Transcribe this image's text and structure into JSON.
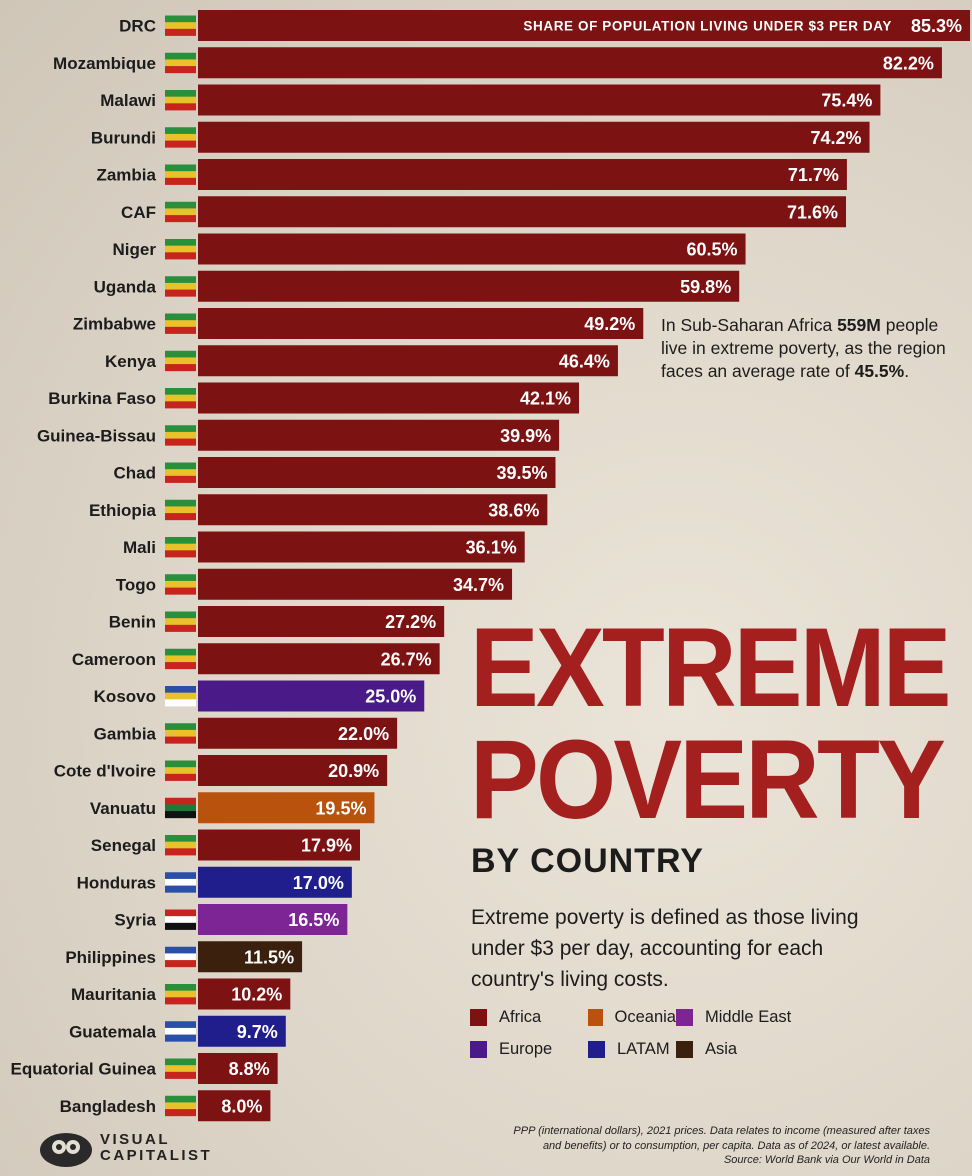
{
  "chart_data": {
    "type": "bar",
    "orientation": "horizontal",
    "value_label": "SHARE OF POPULATION LIVING UNDER $3 PER DAY",
    "unit": "%",
    "xlim": [
      0,
      85.3
    ],
    "categories": [
      "DRC",
      "Mozambique",
      "Malawi",
      "Burundi",
      "Zambia",
      "CAF",
      "Niger",
      "Uganda",
      "Zimbabwe",
      "Kenya",
      "Burkina Faso",
      "Guinea-Bissau",
      "Chad",
      "Ethiopia",
      "Mali",
      "Togo",
      "Benin",
      "Cameroon",
      "Kosovo",
      "Gambia",
      "Cote d'Ivoire",
      "Vanuatu",
      "Senegal",
      "Honduras",
      "Syria",
      "Philippines",
      "Mauritania",
      "Guatemala",
      "Equatorial Guinea",
      "Bangladesh"
    ],
    "values": [
      85.3,
      82.2,
      75.4,
      74.2,
      71.7,
      71.6,
      60.5,
      59.8,
      49.2,
      46.4,
      42.1,
      39.9,
      39.5,
      38.6,
      36.1,
      34.7,
      27.2,
      26.7,
      25.0,
      22.0,
      20.9,
      19.5,
      17.9,
      17.0,
      16.5,
      11.5,
      10.2,
      9.7,
      8.8,
      8.0
    ],
    "labels": [
      "85.3%",
      "82.2%",
      "75.4%",
      "74.2%",
      "71.7%",
      "71.6%",
      "60.5%",
      "59.8%",
      "49.2%",
      "46.4%",
      "42.1%",
      "39.9%",
      "39.5%",
      "38.6%",
      "36.1%",
      "34.7%",
      "27.2%",
      "26.7%",
      "25.0%",
      "22.0%",
      "20.9%",
      "19.5%",
      "17.9%",
      "17.0%",
      "16.5%",
      "11.5%",
      "10.2%",
      "9.7%",
      "8.8%",
      "8.0%"
    ],
    "regions": [
      "Africa",
      "Africa",
      "Africa",
      "Africa",
      "Africa",
      "Africa",
      "Africa",
      "Africa",
      "Africa",
      "Africa",
      "Africa",
      "Africa",
      "Africa",
      "Africa",
      "Africa",
      "Africa",
      "Africa",
      "Africa",
      "Europe",
      "Africa",
      "Africa",
      "Oceania",
      "Africa",
      "LATAM",
      "Middle East",
      "Asia",
      "Africa",
      "LATAM",
      "Africa",
      "Africa"
    ],
    "legend": [
      {
        "name": "Africa",
        "color": "#7d1212"
      },
      {
        "name": "Oceania",
        "color": "#b8520c"
      },
      {
        "name": "Middle East",
        "color": "#7e2596"
      },
      {
        "name": "Europe",
        "color": "#4a1a88"
      },
      {
        "name": "LATAM",
        "color": "#201e8c"
      },
      {
        "name": "Asia",
        "color": "#3b200d"
      }
    ]
  },
  "title_line1": "EXTREME",
  "title_line2": "POVERTY",
  "subtitle": "BY COUNTRY",
  "description": "Extreme poverty is defined as those living under $3 per day, accounting for each country's living costs.",
  "annotation": {
    "prefix": "In Sub-Saharan Africa ",
    "people": "559M",
    "middle": " people live in extreme poverty, as the region faces an average rate of ",
    "rate": "45.5%",
    "suffix": "."
  },
  "footnote": {
    "line1": "PPP (international dollars), 2021 prices. Data relates to income (measured after taxes",
    "line2": "and benefits) or to consumption, per capita. Data as of 2024, or latest available.",
    "line3": "Source: World Bank via Our World in Data"
  },
  "logo": {
    "line1": "VISUAL",
    "line2": "CAPITALIST"
  }
}
